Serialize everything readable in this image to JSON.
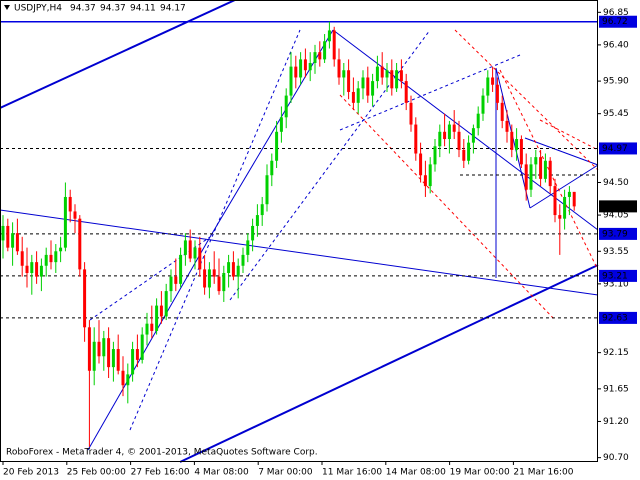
{
  "chart_data": {
    "type": "candlestick",
    "symbol": "USDJPY,H4",
    "footer": "RoboForex - MetaTrader 4, © 2001-2013, MetaQuotes Software Corp.",
    "x_labels": [
      "20 Feb 2013",
      "25 Feb 00:00",
      "27 Feb 16:00",
      "4 Mar 08:00",
      "7 Mar 00:00",
      "11 Mar 16:00",
      "14 Mar 08:00",
      "19 Mar 00:00",
      "21 Mar 16:00"
    ],
    "ylim": [
      90.64,
      97.02
    ],
    "yticks": [
      {
        "value": 96.85,
        "label": "96.85"
      },
      {
        "value": 96.4,
        "label": "96.40"
      },
      {
        "value": 95.9,
        "label": "95.90"
      },
      95.45,
      {
        "value": 94.5,
        "label": "94.50"
      },
      94.05,
      93.55,
      {
        "value": 93.1,
        "label": "93.10"
      },
      92.15,
      91.65,
      {
        "value": 91.2,
        "label": "91.20"
      },
      {
        "value": 90.7,
        "label": "90.70"
      }
    ],
    "levels": [
      {
        "value": 96.72,
        "style": "solid"
      },
      {
        "value": 94.97,
        "style": "dashed"
      },
      {
        "value": 93.79,
        "style": "dashed"
      },
      {
        "value": 93.21,
        "style": "dashed"
      },
      {
        "value": 92.63,
        "style": "dashed"
      }
    ],
    "current_price": 94.17,
    "up_color": "#00d000",
    "down_color": "#ff0000",
    "level_color": "#0000e0",
    "candles": [
      [
        93.7,
        94.05,
        93.45,
        93.9
      ],
      [
        93.9,
        94.0,
        93.55,
        93.6
      ],
      [
        93.6,
        93.95,
        93.35,
        93.8
      ],
      [
        93.8,
        94.0,
        93.5,
        93.55
      ],
      [
        93.55,
        93.75,
        93.2,
        93.35
      ],
      [
        93.35,
        93.6,
        93.05,
        93.25
      ],
      [
        93.25,
        93.5,
        92.95,
        93.4
      ],
      [
        93.4,
        93.55,
        93.1,
        93.2
      ],
      [
        93.2,
        93.45,
        93.0,
        93.35
      ],
      [
        93.35,
        93.6,
        93.2,
        93.5
      ],
      [
        93.5,
        93.7,
        93.3,
        93.4
      ],
      [
        93.4,
        93.65,
        93.25,
        93.55
      ],
      [
        93.55,
        93.75,
        93.4,
        93.6
      ],
      [
        93.6,
        94.5,
        93.55,
        94.3
      ],
      [
        94.3,
        94.4,
        93.95,
        94.1
      ],
      [
        94.1,
        94.2,
        93.8,
        94.0
      ],
      [
        94.0,
        94.05,
        93.2,
        93.3
      ],
      [
        93.3,
        93.4,
        92.3,
        92.5
      ],
      [
        92.5,
        92.6,
        90.85,
        91.9
      ],
      [
        91.9,
        92.5,
        91.7,
        92.3
      ],
      [
        92.3,
        92.6,
        92.0,
        92.1
      ],
      [
        92.1,
        92.45,
        91.9,
        92.35
      ],
      [
        92.35,
        92.5,
        91.8,
        91.95
      ],
      [
        91.95,
        92.3,
        91.75,
        92.2
      ],
      [
        92.2,
        92.4,
        91.85,
        91.9
      ],
      [
        91.9,
        92.1,
        91.55,
        91.7
      ],
      [
        91.7,
        92.0,
        91.45,
        91.85
      ],
      [
        91.85,
        92.3,
        91.75,
        92.2
      ],
      [
        92.2,
        92.4,
        91.95,
        92.05
      ],
      [
        92.05,
        92.5,
        92.0,
        92.4
      ],
      [
        92.4,
        92.7,
        92.25,
        92.55
      ],
      [
        92.55,
        92.8,
        92.35,
        92.45
      ],
      [
        92.45,
        92.9,
        92.4,
        92.8
      ],
      [
        92.8,
        93.0,
        92.55,
        92.65
      ],
      [
        92.65,
        93.1,
        92.6,
        93.0
      ],
      [
        93.0,
        93.3,
        92.85,
        93.2
      ],
      [
        93.2,
        93.45,
        93.0,
        93.1
      ],
      [
        93.1,
        93.6,
        93.05,
        93.5
      ],
      [
        93.5,
        93.8,
        93.35,
        93.7
      ],
      [
        93.7,
        93.85,
        93.4,
        93.45
      ],
      [
        93.45,
        93.7,
        93.3,
        93.6
      ],
      [
        93.6,
        93.75,
        93.2,
        93.3
      ],
      [
        93.3,
        93.5,
        92.95,
        93.05
      ],
      [
        93.05,
        93.4,
        92.9,
        93.3
      ],
      [
        93.3,
        93.55,
        93.1,
        93.2
      ],
      [
        93.2,
        93.45,
        92.95,
        93.0
      ],
      [
        93.0,
        93.35,
        92.85,
        93.25
      ],
      [
        93.25,
        93.5,
        93.05,
        93.4
      ],
      [
        93.4,
        93.55,
        93.15,
        93.2
      ],
      [
        93.2,
        93.45,
        92.9,
        93.35
      ],
      [
        93.35,
        93.6,
        93.25,
        93.5
      ],
      [
        93.5,
        93.8,
        93.4,
        93.7
      ],
      [
        93.7,
        94.0,
        93.55,
        93.9
      ],
      [
        93.9,
        94.2,
        93.75,
        94.05
      ],
      [
        94.05,
        94.3,
        93.9,
        94.2
      ],
      [
        94.2,
        94.75,
        94.1,
        94.6
      ],
      [
        94.6,
        94.9,
        94.45,
        94.8
      ],
      [
        94.8,
        95.35,
        94.7,
        95.2
      ],
      [
        95.2,
        95.55,
        95.05,
        95.4
      ],
      [
        95.4,
        95.8,
        95.25,
        95.7
      ],
      [
        95.7,
        96.3,
        95.6,
        96.1
      ],
      [
        96.1,
        96.25,
        95.8,
        95.95
      ],
      [
        95.95,
        96.3,
        95.85,
        96.2
      ],
      [
        96.2,
        96.35,
        95.95,
        96.05
      ],
      [
        96.05,
        96.3,
        95.9,
        96.15
      ],
      [
        96.15,
        96.4,
        96.0,
        96.3
      ],
      [
        96.3,
        96.45,
        96.1,
        96.2
      ],
      [
        96.2,
        96.55,
        96.15,
        96.45
      ],
      [
        96.45,
        96.72,
        96.35,
        96.6
      ],
      [
        96.6,
        96.65,
        96.1,
        96.2
      ],
      [
        96.2,
        96.35,
        95.85,
        95.95
      ],
      [
        95.95,
        96.15,
        95.7,
        96.05
      ],
      [
        96.05,
        96.2,
        95.65,
        95.75
      ],
      [
        95.75,
        95.95,
        95.5,
        95.6
      ],
      [
        95.6,
        95.9,
        95.45,
        95.8
      ],
      [
        95.8,
        96.05,
        95.65,
        95.95
      ],
      [
        95.95,
        96.1,
        95.6,
        95.7
      ],
      [
        95.7,
        96.0,
        95.55,
        95.9
      ],
      [
        95.9,
        96.25,
        95.8,
        96.1
      ],
      [
        96.1,
        96.3,
        95.85,
        95.95
      ],
      [
        95.95,
        96.15,
        95.75,
        96.05
      ],
      [
        96.05,
        96.2,
        95.7,
        95.8
      ],
      [
        95.8,
        96.15,
        95.75,
        96.05
      ],
      [
        96.05,
        96.2,
        95.8,
        95.9
      ],
      [
        95.9,
        96.0,
        95.5,
        95.6
      ],
      [
        95.6,
        95.7,
        95.2,
        95.3
      ],
      [
        95.3,
        95.4,
        94.8,
        94.9
      ],
      [
        94.9,
        95.05,
        94.5,
        94.6
      ],
      [
        94.6,
        94.8,
        94.3,
        94.45
      ],
      [
        94.45,
        94.85,
        94.35,
        94.75
      ],
      [
        94.75,
        95.1,
        94.65,
        95.0
      ],
      [
        95.0,
        95.3,
        94.85,
        95.2
      ],
      [
        95.2,
        95.45,
        95.0,
        95.1
      ],
      [
        95.1,
        95.35,
        94.9,
        95.3
      ],
      [
        95.3,
        95.5,
        95.1,
        95.2
      ],
      [
        95.2,
        95.35,
        94.85,
        94.95
      ],
      [
        94.95,
        95.1,
        94.7,
        94.8
      ],
      [
        94.8,
        95.15,
        94.75,
        95.05
      ],
      [
        95.05,
        95.3,
        94.9,
        95.25
      ],
      [
        95.25,
        95.55,
        95.15,
        95.45
      ],
      [
        95.45,
        95.8,
        95.35,
        95.7
      ],
      [
        95.7,
        96.05,
        95.6,
        95.95
      ],
      [
        95.95,
        96.1,
        95.75,
        95.85
      ],
      [
        95.85,
        95.95,
        95.5,
        95.6
      ],
      [
        95.6,
        95.7,
        95.25,
        95.35
      ],
      [
        95.35,
        95.5,
        95.05,
        95.2
      ],
      [
        95.2,
        95.3,
        94.85,
        94.95
      ],
      [
        94.95,
        95.25,
        94.8,
        95.1
      ],
      [
        95.1,
        95.15,
        94.7,
        94.75
      ],
      [
        94.75,
        94.9,
        94.25,
        94.4
      ],
      [
        94.4,
        94.85,
        94.3,
        94.75
      ],
      [
        94.75,
        94.95,
        94.55,
        94.85
      ],
      [
        94.85,
        94.95,
        94.45,
        94.55
      ],
      [
        94.55,
        94.9,
        94.5,
        94.8
      ],
      [
        94.8,
        94.85,
        94.35,
        94.45
      ],
      [
        94.45,
        94.55,
        93.95,
        94.05
      ],
      [
        94.05,
        94.2,
        93.5,
        94.0
      ],
      [
        94.0,
        94.4,
        93.85,
        94.3
      ],
      [
        94.3,
        94.45,
        94.05,
        94.37
      ],
      [
        94.37,
        94.37,
        94.11,
        94.17
      ]
    ]
  }
}
